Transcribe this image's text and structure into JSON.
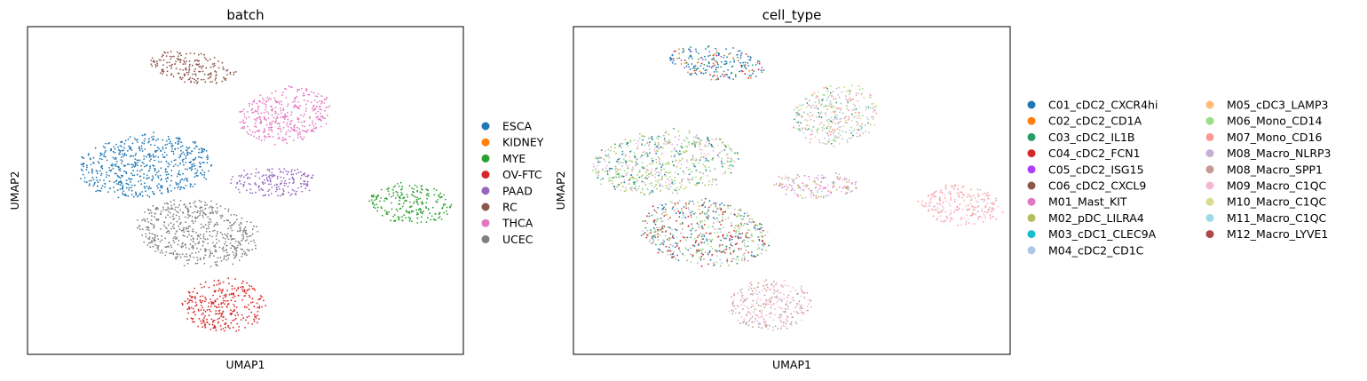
{
  "colors": {
    "ESCA": "#1f77b4",
    "KIDNEY": "#ff7f0e",
    "MYE": "#2ca02c",
    "OV-FTC": "#d62728",
    "PAAD": "#9467bd",
    "RC": "#8c564b",
    "THCA": "#e377c2",
    "UCEC": "#7f7f7f",
    "C01_cDC2_CXCR4hi": "#1f77b4",
    "C02_cDC2_CD1A": "#ff7f0e",
    "C03_cDC2_IL1B": "#279e68",
    "C04_cDC2_FCN1": "#d62728",
    "C05_cDC2_ISG15": "#aa40fc",
    "C06_cDC2_CXCL9": "#8c564b",
    "M01_Mast_KIT": "#e377c2",
    "M02_pDC_LILRA4": "#b5bd61",
    "M03_cDC1_CLEC9A": "#17becf",
    "M04_cDC2_CD1C": "#aec7e8",
    "M05_cDC3_LAMP3": "#ffbb78",
    "M06_Mono_CD14": "#98df8a",
    "M07_Mono_CD16": "#ff9896",
    "M08_Macro_NLRP3": "#c5b0d5",
    "M08_Macro_SPP1": "#c49c94",
    "M09_Macro_C1QC": "#f7b6d2",
    "M10_Macro_C1QC": "#dbdb8d",
    "M11_Macro_C1QC": "#9edae5",
    "M12_Macro_LYVE1": "#ad494a"
  },
  "chart_data": [
    {
      "type": "scatter",
      "title": "batch",
      "xlabel": "UMAP1",
      "ylabel": "UMAP2",
      "grid": false,
      "legend_position": "right",
      "legend": [
        "ESCA",
        "KIDNEY",
        "MYE",
        "OV-FTC",
        "PAAD",
        "RC",
        "THCA",
        "UCEC"
      ],
      "clusters": [
        {
          "id": "A",
          "cx": 0.27,
          "cy": 0.575,
          "rx": 0.155,
          "ry": 0.095,
          "rot": -4,
          "mix": [
            [
              "ESCA",
              1
            ]
          ]
        },
        {
          "id": "B",
          "cx": 0.383,
          "cy": 0.875,
          "rx": 0.105,
          "ry": 0.045,
          "rot": 8,
          "mix": [
            [
              "RC",
              1
            ]
          ]
        },
        {
          "id": "C",
          "cx": 0.59,
          "cy": 0.73,
          "rx": 0.105,
          "ry": 0.085,
          "rot": -10,
          "mix": [
            [
              "THCA",
              1
            ]
          ]
        },
        {
          "id": "D",
          "cx": 0.565,
          "cy": 0.525,
          "rx": 0.1,
          "ry": 0.045,
          "rot": 0,
          "mix": [
            [
              "PAAD",
              1
            ]
          ]
        },
        {
          "id": "E",
          "cx": 0.88,
          "cy": 0.46,
          "rx": 0.095,
          "ry": 0.06,
          "rot": 5,
          "mix": [
            [
              "MYE",
              1
            ]
          ]
        },
        {
          "id": "F",
          "cx": 0.39,
          "cy": 0.37,
          "rx": 0.14,
          "ry": 0.1,
          "rot": 8,
          "mix": [
            [
              "UCEC",
              1
            ]
          ]
        },
        {
          "id": "G",
          "cx": 0.45,
          "cy": 0.15,
          "rx": 0.095,
          "ry": 0.08,
          "rot": 0,
          "mix": [
            [
              "OV-FTC",
              1
            ]
          ]
        }
      ]
    },
    {
      "type": "scatter",
      "title": "cell_type",
      "xlabel": "UMAP1",
      "ylabel": "UMAP2",
      "grid": false,
      "legend_position": "right",
      "legend": [
        "C01_cDC2_CXCR4hi",
        "C02_cDC2_CD1A",
        "C03_cDC2_IL1B",
        "C04_cDC2_FCN1",
        "C05_cDC2_ISG15",
        "C06_cDC2_CXCL9",
        "M01_Mast_KIT",
        "M02_pDC_LILRA4",
        "M03_cDC1_CLEC9A",
        "M04_cDC2_CD1C",
        "M05_cDC3_LAMP3",
        "M06_Mono_CD14",
        "M07_Mono_CD16",
        "M08_Macro_NLRP3",
        "M08_Macro_SPP1",
        "M09_Macro_C1QC",
        "M10_Macro_C1QC",
        "M11_Macro_C1QC",
        "M12_Macro_LYVE1"
      ],
      "clusters": [
        {
          "id": "A",
          "cx": 0.21,
          "cy": 0.585,
          "rx": 0.17,
          "ry": 0.095,
          "rot": -4,
          "mix": [
            [
              "M06_Mono_CD14",
              0.3
            ],
            [
              "M02_pDC_LILRA4",
              0.2
            ],
            [
              "M08_Macro_NLRP3",
              0.15
            ],
            [
              "M09_Macro_C1QC",
              0.15
            ],
            [
              "C03_cDC2_IL1B",
              0.1
            ],
            [
              "C01_cDC2_CXCR4hi",
              0.1
            ]
          ]
        },
        {
          "id": "B",
          "cx": 0.33,
          "cy": 0.89,
          "rx": 0.11,
          "ry": 0.05,
          "rot": 8,
          "mix": [
            [
              "C01_cDC2_CXCR4hi",
              0.5
            ],
            [
              "C03_cDC2_IL1B",
              0.2
            ],
            [
              "C02_cDC2_CD1A",
              0.15
            ],
            [
              "C04_cDC2_FCN1",
              0.1
            ],
            [
              "C05_cDC2_ISG15",
              0.05
            ]
          ]
        },
        {
          "id": "C",
          "cx": 0.6,
          "cy": 0.73,
          "rx": 0.1,
          "ry": 0.09,
          "rot": -10,
          "mix": [
            [
              "M06_Mono_CD14",
              0.2
            ],
            [
              "M04_cDC2_CD1C",
              0.2
            ],
            [
              "M07_Mono_CD16",
              0.2
            ],
            [
              "M10_Macro_C1QC",
              0.15
            ],
            [
              "M08_Macro_NLRP3",
              0.15
            ],
            [
              "C03_cDC2_IL1B",
              0.1
            ]
          ]
        },
        {
          "id": "D",
          "cx": 0.555,
          "cy": 0.515,
          "rx": 0.1,
          "ry": 0.04,
          "rot": 0,
          "mix": [
            [
              "M02_pDC_LILRA4",
              0.3
            ],
            [
              "M01_Mast_KIT",
              0.3
            ],
            [
              "M04_cDC2_CD1C",
              0.2
            ],
            [
              "M09_Macro_C1QC",
              0.2
            ]
          ]
        },
        {
          "id": "E",
          "cx": 0.885,
          "cy": 0.455,
          "rx": 0.095,
          "ry": 0.06,
          "rot": 5,
          "mix": [
            [
              "M07_Mono_CD16",
              0.6
            ],
            [
              "M09_Macro_C1QC",
              0.3
            ],
            [
              "M04_cDC2_CD1C",
              0.1
            ]
          ]
        },
        {
          "id": "F",
          "cx": 0.3,
          "cy": 0.37,
          "rx": 0.15,
          "ry": 0.1,
          "rot": 8,
          "mix": [
            [
              "M06_Mono_CD14",
              0.2
            ],
            [
              "C01_cDC2_CXCR4hi",
              0.15
            ],
            [
              "C04_cDC2_FCN1",
              0.15
            ],
            [
              "M08_Macro_SPP1",
              0.15
            ],
            [
              "C03_cDC2_IL1B",
              0.1
            ],
            [
              "M04_cDC2_CD1C",
              0.1
            ],
            [
              "C06_cDC2_CXCL9",
              0.1
            ],
            [
              "M02_pDC_LILRA4",
              0.05
            ]
          ]
        },
        {
          "id": "G",
          "cx": 0.45,
          "cy": 0.15,
          "rx": 0.095,
          "ry": 0.08,
          "rot": 0,
          "mix": [
            [
              "M09_Macro_C1QC",
              0.5
            ],
            [
              "M08_Macro_SPP1",
              0.4
            ],
            [
              "M04_cDC2_CD1C",
              0.1
            ]
          ]
        }
      ]
    }
  ]
}
